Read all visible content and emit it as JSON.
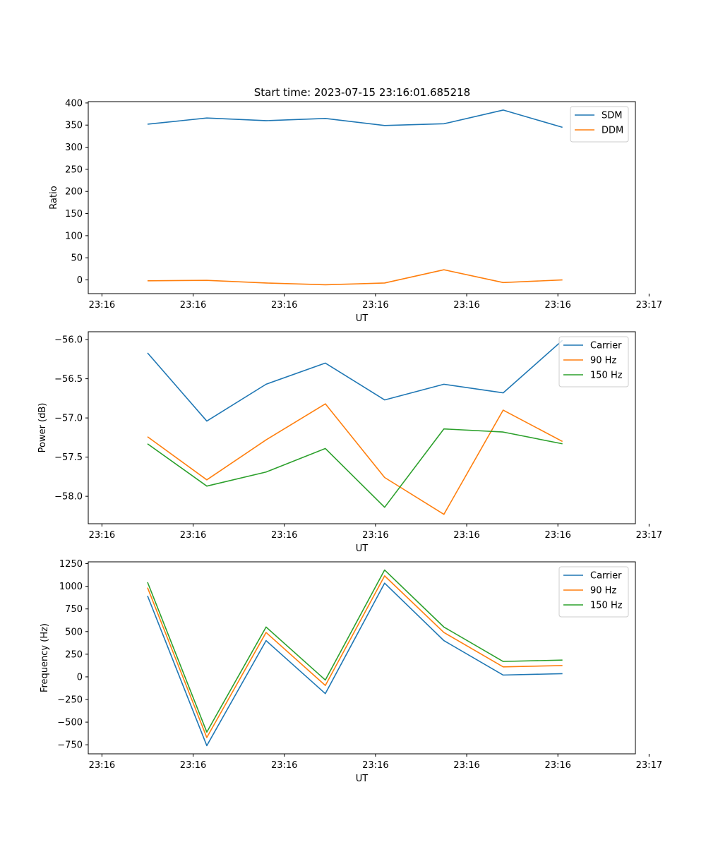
{
  "title": "Start time: 2023-07-15 23:16:01.685218",
  "chart_data": [
    {
      "type": "line",
      "xlabel": "UT",
      "ylabel": "Ratio",
      "x": [
        0.5,
        1.15,
        1.8,
        2.45,
        3.1,
        3.75,
        4.4,
        5.05
      ],
      "xlim": [
        -0.15,
        5.85
      ],
      "x_ticks": [
        0,
        1,
        2,
        3,
        4,
        5,
        6
      ],
      "x_tick_labels": [
        "23:16",
        "23:16",
        "23:16",
        "23:16",
        "23:16",
        "23:16",
        "23:17"
      ],
      "ylim": [
        -31,
        403
      ],
      "y_ticks": [
        0,
        50,
        100,
        150,
        200,
        250,
        300,
        350,
        400
      ],
      "y_tick_labels": [
        "0",
        "50",
        "100",
        "150",
        "200",
        "250",
        "300",
        "350",
        "400"
      ],
      "legend_position": "top-right",
      "series": [
        {
          "name": "SDM",
          "color": "#1f77b4",
          "values": [
            352,
            366,
            360,
            365,
            349,
            353,
            384,
            345
          ]
        },
        {
          "name": "DDM",
          "color": "#ff7f0e",
          "values": [
            -2,
            -1,
            -7,
            -11,
            -7,
            23,
            -6,
            0
          ]
        }
      ]
    },
    {
      "type": "line",
      "xlabel": "UT",
      "ylabel": "Power (dB)",
      "x": [
        0.5,
        1.15,
        1.8,
        2.45,
        3.1,
        3.75,
        4.4,
        5.05
      ],
      "xlim": [
        -0.15,
        5.85
      ],
      "x_ticks": [
        0,
        1,
        2,
        3,
        4,
        5,
        6
      ],
      "x_tick_labels": [
        "23:16",
        "23:16",
        "23:16",
        "23:16",
        "23:16",
        "23:16",
        "23:17"
      ],
      "ylim": [
        -58.35,
        -55.9
      ],
      "y_ticks": [
        -58.0,
        -57.5,
        -57.0,
        -56.5,
        -56.0
      ],
      "y_tick_labels": [
        "−58.0",
        "−57.5",
        "−57.0",
        "−56.5",
        "−56.0"
      ],
      "legend_position": "top-right",
      "series": [
        {
          "name": "Carrier",
          "color": "#1f77b4",
          "values": [
            -56.17,
            -57.04,
            -56.57,
            -56.3,
            -56.77,
            -56.57,
            -56.68,
            -56.01
          ]
        },
        {
          "name": "90 Hz",
          "color": "#ff7f0e",
          "values": [
            -57.24,
            -57.79,
            -57.28,
            -56.82,
            -57.76,
            -58.23,
            -56.9,
            -57.3
          ]
        },
        {
          "name": "150 Hz",
          "color": "#2ca02c",
          "values": [
            -57.33,
            -57.87,
            -57.69,
            -57.39,
            -58.14,
            -57.14,
            -57.18,
            -57.33
          ]
        }
      ]
    },
    {
      "type": "line",
      "xlabel": "UT",
      "ylabel": "Frequency (Hz)",
      "x": [
        0.5,
        1.15,
        1.8,
        2.45,
        3.1,
        3.75,
        4.4,
        5.05
      ],
      "xlim": [
        -0.15,
        5.85
      ],
      "x_ticks": [
        0,
        1,
        2,
        3,
        4,
        5,
        6
      ],
      "x_tick_labels": [
        "23:16",
        "23:16",
        "23:16",
        "23:16",
        "23:16",
        "23:16",
        "23:17"
      ],
      "ylim": [
        -850,
        1270
      ],
      "y_ticks": [
        -750,
        -500,
        -250,
        0,
        250,
        500,
        750,
        1000,
        1250
      ],
      "y_tick_labels": [
        "−750",
        "−500",
        "−250",
        "0",
        "250",
        "500",
        "750",
        "1000",
        "1250"
      ],
      "legend_position": "top-right",
      "series": [
        {
          "name": "Carrier",
          "color": "#1f77b4",
          "values": [
            895,
            -760,
            400,
            -185,
            1035,
            400,
            20,
            35
          ]
        },
        {
          "name": "90 Hz",
          "color": "#ff7f0e",
          "values": [
            985,
            -670,
            490,
            -95,
            1115,
            490,
            110,
            125
          ]
        },
        {
          "name": "150 Hz",
          "color": "#2ca02c",
          "values": [
            1045,
            -610,
            550,
            -35,
            1180,
            550,
            170,
            185
          ]
        }
      ]
    }
  ]
}
